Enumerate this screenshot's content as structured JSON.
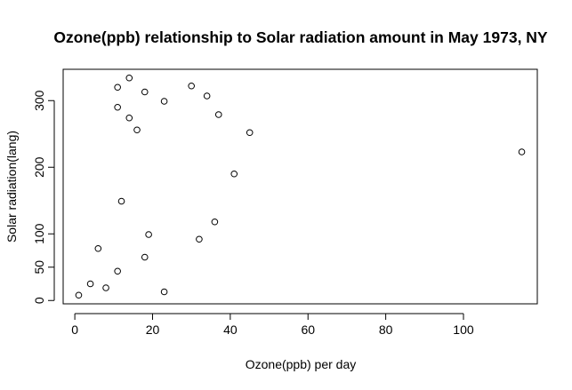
{
  "chart_data": {
    "type": "scatter",
    "title": "Ozone(ppb) relationship to Solar radiation amount in May 1973, NY",
    "xlabel": "Ozone(ppb) per day",
    "ylabel": "Solar radiation(lang)",
    "xlim": [
      -3,
      119
    ],
    "ylim": [
      -5,
      347
    ],
    "x_ticks": [
      0,
      20,
      40,
      60,
      80,
      100
    ],
    "x_tick_labels": [
      "0",
      "20",
      "40",
      "60",
      "80",
      "100"
    ],
    "y_ticks": [
      0,
      50,
      100,
      200,
      300
    ],
    "y_tick_labels": [
      "0",
      "50",
      "100",
      "200",
      "300"
    ],
    "grid": false,
    "legend": "none",
    "points": [
      {
        "x": 1,
        "y": 8
      },
      {
        "x": 4,
        "y": 25
      },
      {
        "x": 6,
        "y": 78
      },
      {
        "x": 8,
        "y": 19
      },
      {
        "x": 11,
        "y": 44
      },
      {
        "x": 11,
        "y": 290
      },
      {
        "x": 11,
        "y": 320
      },
      {
        "x": 12,
        "y": 149
      },
      {
        "x": 14,
        "y": 274
      },
      {
        "x": 14,
        "y": 334
      },
      {
        "x": 16,
        "y": 256
      },
      {
        "x": 18,
        "y": 65
      },
      {
        "x": 18,
        "y": 313
      },
      {
        "x": 19,
        "y": 99
      },
      {
        "x": 23,
        "y": 13
      },
      {
        "x": 23,
        "y": 299
      },
      {
        "x": 30,
        "y": 322
      },
      {
        "x": 32,
        "y": 92
      },
      {
        "x": 34,
        "y": 307
      },
      {
        "x": 36,
        "y": 118
      },
      {
        "x": 37,
        "y": 279
      },
      {
        "x": 41,
        "y": 190
      },
      {
        "x": 45,
        "y": 252
      },
      {
        "x": 115,
        "y": 223
      }
    ]
  }
}
